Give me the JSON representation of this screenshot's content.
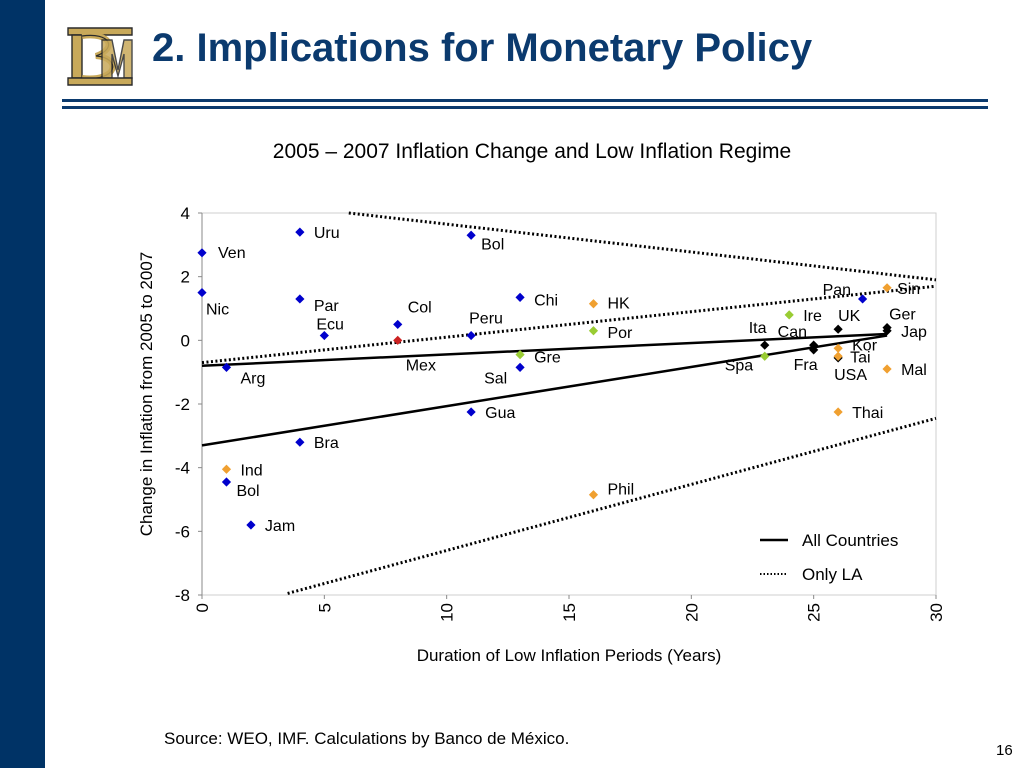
{
  "slide": {
    "title": "2. Implications for Monetary Policy",
    "source": "Source: WEO, IMF. Calculations by Banco de México.",
    "page_number": "16",
    "accent_color": "#0b3a6e",
    "sidebar_color": "#003366"
  },
  "chart_data": {
    "type": "scatter",
    "title": "2005 – 2007 Inflation Change and Low Inflation Regime",
    "xlabel": "Duration of Low Inflation Periods (Years)",
    "ylabel": "Change in Inflation from 2005 to 2007",
    "xlim": [
      0,
      30
    ],
    "ylim": [
      -8,
      4
    ],
    "xticks": [
      0,
      5,
      10,
      15,
      20,
      25,
      30
    ],
    "yticks": [
      -8,
      -6,
      -4,
      -2,
      0,
      2,
      4
    ],
    "grid": false,
    "legend_position": "bottom-right",
    "points": [
      {
        "label": "Ven",
        "x": 0,
        "y": 2.75,
        "color": "#0000cc"
      },
      {
        "label": "Nic",
        "x": 0,
        "y": 1.5,
        "color": "#0000cc"
      },
      {
        "label": "Arg",
        "x": 1,
        "y": -0.85,
        "color": "#0000cc"
      },
      {
        "label": "Ind",
        "x": 1,
        "y": -4.05,
        "color": "#f0a030"
      },
      {
        "label": "Bol",
        "x": 1,
        "y": -4.45,
        "color": "#0000cc"
      },
      {
        "label": "Jam",
        "x": 2,
        "y": -5.8,
        "color": "#0000cc"
      },
      {
        "label": "Uru",
        "x": 4,
        "y": 3.4,
        "color": "#0000cc"
      },
      {
        "label": "Par",
        "x": 4,
        "y": 1.3,
        "color": "#0000cc"
      },
      {
        "label": "Bra",
        "x": 4,
        "y": -3.2,
        "color": "#0000cc"
      },
      {
        "label": "Ecu",
        "x": 5,
        "y": 0.15,
        "color": "#0000cc"
      },
      {
        "label": "Col",
        "x": 8,
        "y": 0.5,
        "color": "#0000cc"
      },
      {
        "label": "Mex",
        "x": 8,
        "y": 0.0,
        "color": "#cc2222"
      },
      {
        "label": "Bol",
        "x": 11,
        "y": 3.3,
        "color": "#0000cc"
      },
      {
        "label": "Peru",
        "x": 11,
        "y": 0.15,
        "color": "#0000cc"
      },
      {
        "label": "Gua",
        "x": 11,
        "y": -2.25,
        "color": "#0000cc"
      },
      {
        "label": "Chi",
        "x": 13,
        "y": 1.35,
        "color": "#0000cc"
      },
      {
        "label": "Gre",
        "x": 13,
        "y": -0.45,
        "color": "#99cc33"
      },
      {
        "label": "Sal",
        "x": 13,
        "y": -0.85,
        "color": "#0000cc"
      },
      {
        "label": "HK",
        "x": 16,
        "y": 1.15,
        "color": "#f0a030"
      },
      {
        "label": "Por",
        "x": 16,
        "y": 0.3,
        "color": "#99cc33"
      },
      {
        "label": "Phil",
        "x": 16,
        "y": -4.85,
        "color": "#f0a030"
      },
      {
        "label": "Ita",
        "x": 23,
        "y": -0.15,
        "color": "#000000"
      },
      {
        "label": "Spa",
        "x": 23,
        "y": -0.5,
        "color": "#99cc33"
      },
      {
        "label": "Can",
        "x": 25,
        "y": -0.15,
        "color": "#000000"
      },
      {
        "label": "Fra",
        "x": 25,
        "y": -0.3,
        "color": "#000000"
      },
      {
        "label": "Ire",
        "x": 24,
        "y": 0.8,
        "color": "#99cc33"
      },
      {
        "label": "Pan",
        "x": 27,
        "y": 1.3,
        "color": "#0000cc"
      },
      {
        "label": "UK",
        "x": 26,
        "y": 0.35,
        "color": "#000000"
      },
      {
        "label": "Kor",
        "x": 26,
        "y": -0.25,
        "color": "#f0a030"
      },
      {
        "label": "USA",
        "x": 26,
        "y": -0.55,
        "color": "#000000"
      },
      {
        "label": "Tai",
        "x": 26,
        "y": -0.5,
        "color": "#f0a030"
      },
      {
        "label": "Thai",
        "x": 26,
        "y": -2.25,
        "color": "#f0a030"
      },
      {
        "label": "Sin",
        "x": 28,
        "y": 1.65,
        "color": "#f0a030"
      },
      {
        "label": "Ger",
        "x": 28,
        "y": 0.4,
        "color": "#000000"
      },
      {
        "label": "Jap",
        "x": 28,
        "y": 0.3,
        "color": "#000000"
      },
      {
        "label": "Mal",
        "x": 28,
        "y": -0.9,
        "color": "#f0a030"
      }
    ],
    "lines": [
      {
        "name": "All Countries",
        "style": "solid",
        "segments": [
          {
            "x": [
              0,
              28
            ],
            "y": [
              -0.8,
              0.2
            ]
          },
          {
            "x": [
              0,
              28
            ],
            "y": [
              -3.3,
              0.15
            ]
          }
        ]
      },
      {
        "name": "Only LA",
        "style": "dotted",
        "segments": [
          {
            "x": [
              0,
              30
            ],
            "y": [
              -0.7,
              1.7
            ]
          },
          {
            "x": [
              6,
              30
            ],
            "y": [
              4.0,
              1.9
            ]
          },
          {
            "x": [
              3.5,
              30
            ],
            "y": [
              -7.95,
              -2.45
            ]
          }
        ]
      }
    ],
    "legend": [
      {
        "label": "All Countries",
        "style": "solid"
      },
      {
        "label": "Only LA",
        "style": "dotted"
      }
    ]
  }
}
